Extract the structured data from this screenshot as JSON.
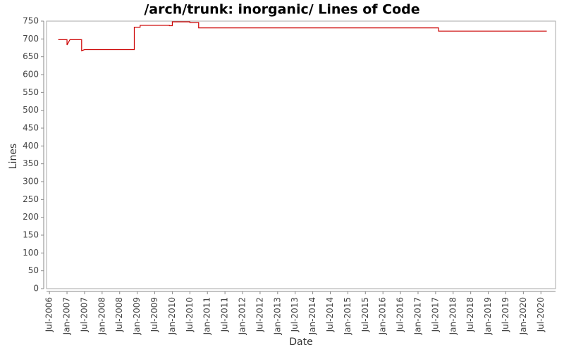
{
  "chart_data": {
    "type": "line",
    "title": "/arch/trunk: inorganic/ Lines of Code",
    "x_label": "Date",
    "y_label": "Lines",
    "x": [
      "2006-10",
      "2007-01",
      "2007-01",
      "2007-02",
      "2007-06",
      "2007-06",
      "2007-07",
      "2008-12",
      "2008-12",
      "2009-02",
      "2009-02",
      "2009-12",
      "2009-12",
      "2010-01",
      "2010-01",
      "2010-07",
      "2010-07",
      "2010-10",
      "2010-10",
      "2017-08",
      "2017-08",
      "2020-09"
    ],
    "series": [
      {
        "name": "Lines of Code",
        "color": "#cc0000",
        "values": [
          698,
          698,
          683,
          698,
          698,
          667,
          670,
          670,
          733,
          733,
          738,
          738,
          737,
          737,
          748,
          748,
          746,
          746,
          731,
          731,
          722,
          722
        ]
      }
    ],
    "xlim": [
      "2006-06",
      "2020-12"
    ],
    "xticks": [
      {
        "value": "2006-07",
        "label": "Jul-2006"
      },
      {
        "value": "2007-01",
        "label": "Jan-2007"
      },
      {
        "value": "2007-07",
        "label": "Jul-2007"
      },
      {
        "value": "2008-01",
        "label": "Jan-2008"
      },
      {
        "value": "2008-07",
        "label": "Jul-2008"
      },
      {
        "value": "2009-01",
        "label": "Jan-2009"
      },
      {
        "value": "2009-07",
        "label": "Jul-2009"
      },
      {
        "value": "2010-01",
        "label": "Jan-2010"
      },
      {
        "value": "2010-07",
        "label": "Jul-2010"
      },
      {
        "value": "2011-01",
        "label": "Jan-2011"
      },
      {
        "value": "2011-07",
        "label": "Jul-2011"
      },
      {
        "value": "2012-01",
        "label": "Jan-2012"
      },
      {
        "value": "2012-07",
        "label": "Jul-2012"
      },
      {
        "value": "2013-01",
        "label": "Jan-2013"
      },
      {
        "value": "2013-07",
        "label": "Jul-2013"
      },
      {
        "value": "2014-01",
        "label": "Jan-2014"
      },
      {
        "value": "2014-07",
        "label": "Jul-2014"
      },
      {
        "value": "2015-01",
        "label": "Jan-2015"
      },
      {
        "value": "2015-07",
        "label": "Jul-2015"
      },
      {
        "value": "2016-01",
        "label": "Jan-2016"
      },
      {
        "value": "2016-07",
        "label": "Jul-2016"
      },
      {
        "value": "2017-01",
        "label": "Jan-2017"
      },
      {
        "value": "2017-07",
        "label": "Jul-2017"
      },
      {
        "value": "2018-01",
        "label": "Jan-2018"
      },
      {
        "value": "2018-07",
        "label": "Jul-2018"
      },
      {
        "value": "2019-01",
        "label": "Jan-2019"
      },
      {
        "value": "2019-07",
        "label": "Jul-2019"
      },
      {
        "value": "2020-01",
        "label": "Jan-2020"
      },
      {
        "value": "2020-07",
        "label": "Jul-2020"
      }
    ],
    "ylim": [
      0,
      750
    ],
    "yticks": [
      0,
      50,
      100,
      150,
      200,
      250,
      300,
      350,
      400,
      450,
      500,
      550,
      600,
      650,
      700,
      750
    ],
    "grid": false
  }
}
